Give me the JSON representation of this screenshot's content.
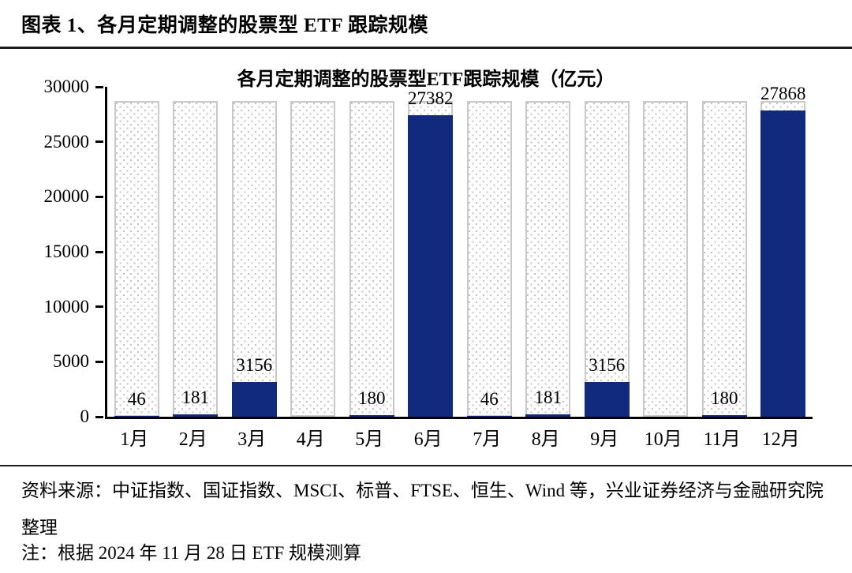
{
  "figure": {
    "caption": "图表 1、各月定期调整的股票型 ETF 跟踪规模",
    "source": "资料来源：中证指数、国证指数、MSCI、标普、FTSE、恒生、Wind 等，兴业证券经济与金融研究院整理",
    "note": "注：根据 2024 年 11 月 28 日 ETF 规模测算"
  },
  "chart_data": {
    "type": "bar",
    "title": "各月定期调整的股票型ETF跟踪规模（亿元）",
    "unit": "亿元",
    "categories": [
      "1月",
      "2月",
      "3月",
      "4月",
      "5月",
      "6月",
      "7月",
      "8月",
      "9月",
      "10月",
      "11月",
      "12月"
    ],
    "series": [
      {
        "name": "background-total-tracking-scale-dotted-unlabeled",
        "estimated_from_axis": true,
        "values": [
          28700,
          28700,
          28700,
          28700,
          28700,
          28700,
          28700,
          28700,
          28700,
          28700,
          28700,
          28700
        ]
      },
      {
        "name": "monthly-adjusted-tracking-scale-blue",
        "values": [
          46,
          181,
          3156,
          0,
          180,
          27382,
          46,
          181,
          3156,
          0,
          180,
          27868
        ]
      }
    ],
    "data_labels": [
      "46",
      "181",
      "3156",
      "",
      "180",
      "27382",
      "46",
      "181",
      "3156",
      "",
      "180",
      "27868"
    ],
    "ylim": [
      0,
      30000
    ],
    "yticks": [
      0,
      5000,
      10000,
      15000,
      20000,
      25000,
      30000
    ],
    "grid": false,
    "legend": "none",
    "colors": {
      "bar_blue": "#112a7e",
      "dotted_border": "#c9c9c9",
      "dotted_dot": "#c3c3c3",
      "axis": "#000000",
      "text": "#000000"
    }
  }
}
